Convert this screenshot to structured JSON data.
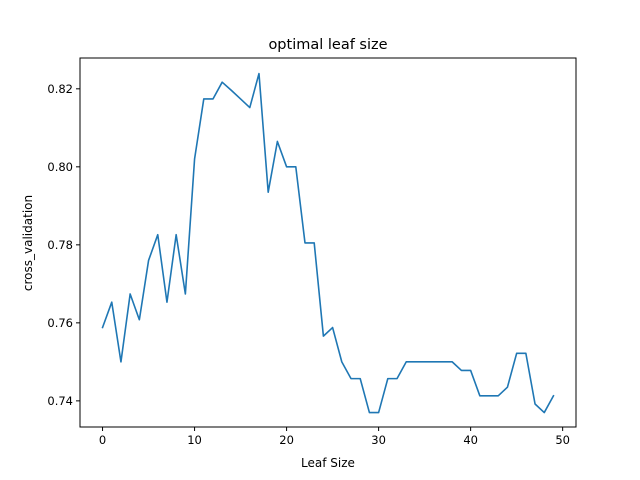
{
  "chart_data": {
    "type": "line",
    "title": "optimal leaf size",
    "xlabel": "Leaf Size",
    "ylabel": "cross_validation",
    "xlim": [
      -2.45,
      51.45
    ],
    "ylim": [
      0.7333,
      0.8279
    ],
    "xticks": [
      0,
      10,
      20,
      30,
      40,
      50
    ],
    "xtick_labels": [
      "0",
      "10",
      "20",
      "30",
      "40",
      "50"
    ],
    "yticks": [
      0.74,
      0.76,
      0.78,
      0.8,
      0.82
    ],
    "ytick_labels": [
      "0.74",
      "0.76",
      "0.78",
      "0.80",
      "0.82"
    ],
    "grid": false,
    "series": [
      {
        "color": "#1f77b4",
        "x": [
          0,
          1,
          2,
          3,
          4,
          5,
          6,
          7,
          8,
          9,
          10,
          11,
          12,
          13,
          14,
          15,
          16,
          17,
          18,
          19,
          20,
          21,
          22,
          23,
          24,
          25,
          26,
          27,
          28,
          29,
          30,
          31,
          32,
          33,
          34,
          35,
          36,
          37,
          38,
          39,
          40,
          41,
          42,
          43,
          44,
          45,
          46,
          47,
          48,
          49
        ],
        "y": [
          0.7588,
          0.7653,
          0.75,
          0.7674,
          0.7608,
          0.776,
          0.7826,
          0.7653,
          0.7826,
          0.7674,
          0.802,
          0.8174,
          0.8174,
          0.8217,
          0.8196,
          0.8174,
          0.8152,
          0.8239,
          0.7935,
          0.8065,
          0.8,
          0.8,
          0.7805,
          0.7805,
          0.7566,
          0.7588,
          0.75,
          0.7457,
          0.7457,
          0.737,
          0.737,
          0.7457,
          0.7457,
          0.75,
          0.75,
          0.75,
          0.75,
          0.75,
          0.75,
          0.7478,
          0.7478,
          0.7413,
          0.7413,
          0.7413,
          0.7435,
          0.7522,
          0.7522,
          0.7392,
          0.737,
          0.7413
        ]
      }
    ]
  }
}
